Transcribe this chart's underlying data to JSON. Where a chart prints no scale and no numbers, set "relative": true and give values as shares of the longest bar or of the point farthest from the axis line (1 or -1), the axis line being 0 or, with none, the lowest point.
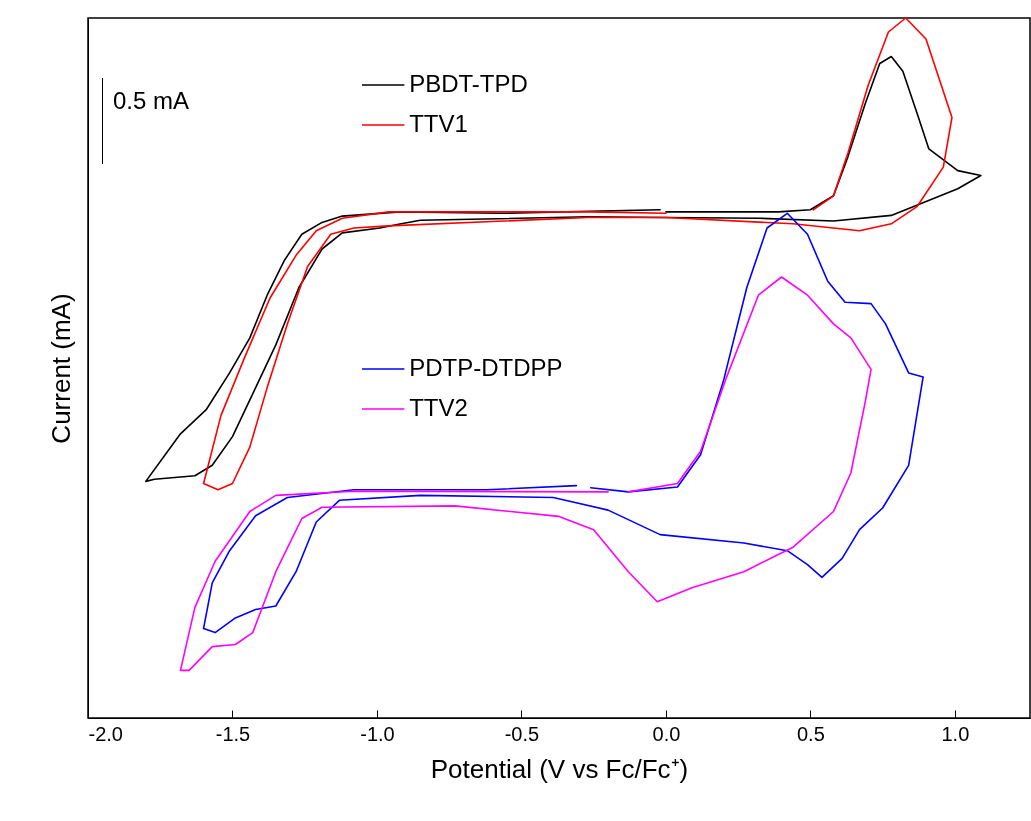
{
  "chart_data": {
    "type": "line",
    "relative": true,
    "xlabel": "Potential (V vs Fc/Fc⁺)",
    "ylabel": "Current (mA)",
    "xlim": [
      -2.0,
      1.26
    ],
    "xticks": [
      {
        "value": -2,
        "label": "-2.0"
      },
      {
        "value": -1.5,
        "label": "-1.5"
      },
      {
        "value": -1,
        "label": "-1.0"
      },
      {
        "value": -0.5,
        "label": "-0.5"
      },
      {
        "value": 0,
        "label": "0.0"
      },
      {
        "value": 0.5,
        "label": "0.5"
      },
      {
        "value": 1,
        "label": "1.0"
      }
    ],
    "tick_labels": "x",
    "grid": false,
    "legend": "top",
    "marker": "none",
    "line_style": "solid",
    "annotations": [
      "0.5 mA"
    ],
    "series": [
      {
        "name": "PBDT-TPD",
        "color": "#000000",
        "x": [
          0.0,
          0.39,
          0.5,
          0.58,
          0.63,
          0.69,
          0.74,
          0.78,
          0.82,
          0.87,
          0.91,
          1.01,
          1.09,
          1.01,
          0.78,
          0.58,
          0.32,
          0.0,
          -0.27,
          -0.85,
          -0.93,
          -0.99,
          -1.12,
          -1.19,
          -1.27,
          -1.35,
          -1.43,
          -1.5,
          -1.57,
          -1.63,
          -1.77,
          -1.8,
          -1.68,
          -1.59,
          -1.51,
          -1.44,
          -1.38,
          -1.32,
          -1.26,
          -1.19,
          -1.12,
          -0.92,
          -0.57,
          -0.02
        ],
        "values": [
          0.723,
          0.723,
          0.726,
          0.746,
          0.802,
          0.878,
          0.935,
          0.945,
          0.924,
          0.863,
          0.813,
          0.782,
          0.775,
          0.756,
          0.718,
          0.71,
          0.714,
          0.715,
          0.716,
          0.711,
          0.705,
          0.7,
          0.693,
          0.67,
          0.615,
          0.533,
          0.463,
          0.402,
          0.361,
          0.346,
          0.341,
          0.338,
          0.406,
          0.441,
          0.493,
          0.543,
          0.604,
          0.654,
          0.691,
          0.708,
          0.717,
          0.723,
          0.721,
          0.726
        ]
      },
      {
        "name": "TTV1",
        "color": "#ff0000",
        "x": [
          0.0,
          -0.27,
          -0.96,
          -1.12,
          -1.21,
          -1.28,
          -1.37,
          -1.46,
          -1.54,
          -1.6,
          -1.55,
          -1.5,
          -1.44,
          -1.38,
          -1.31,
          -1.24,
          -1.16,
          -1.08,
          -0.96,
          -0.27,
          0.0,
          0.44,
          0.67,
          0.78,
          0.87,
          0.96,
          0.99,
          0.9,
          0.83,
          0.77,
          0.7,
          0.63,
          0.58,
          0.51
        ],
        "values": [
          0.721,
          0.723,
          0.723,
          0.714,
          0.696,
          0.661,
          0.6,
          0.513,
          0.432,
          0.335,
          0.326,
          0.335,
          0.387,
          0.472,
          0.563,
          0.645,
          0.691,
          0.7,
          0.703,
          0.715,
          0.715,
          0.706,
          0.696,
          0.706,
          0.731,
          0.787,
          0.858,
          0.97,
          1.0,
          0.98,
          0.904,
          0.807,
          0.746,
          0.726
        ]
      },
      {
        "name": "PDTP-DTDPP",
        "color": "#0000ff",
        "x": [
          -0.31,
          -0.62,
          -1.08,
          -1.31,
          -1.42,
          -1.51,
          -1.57,
          -1.6,
          -1.56,
          -1.49,
          -1.42,
          -1.35,
          -1.28,
          -1.21,
          -1.13,
          -0.85,
          -0.39,
          -0.2,
          -0.02,
          0.27,
          0.42,
          0.49,
          0.54,
          0.61,
          0.67,
          0.75,
          0.84,
          0.89,
          0.84,
          0.76,
          0.71,
          0.62,
          0.56,
          0.49,
          0.42,
          0.35,
          0.28,
          0.2,
          0.12,
          0.04,
          -0.13,
          -0.26
        ],
        "values": [
          0.332,
          0.326,
          0.326,
          0.315,
          0.289,
          0.239,
          0.193,
          0.128,
          0.122,
          0.143,
          0.155,
          0.16,
          0.209,
          0.28,
          0.311,
          0.318,
          0.315,
          0.297,
          0.262,
          0.25,
          0.239,
          0.219,
          0.201,
          0.228,
          0.269,
          0.3,
          0.361,
          0.487,
          0.493,
          0.563,
          0.592,
          0.594,
          0.624,
          0.691,
          0.721,
          0.7,
          0.615,
          0.483,
          0.376,
          0.33,
          0.323,
          0.329
        ]
      },
      {
        "name": "TTV2",
        "color": "#ff00ff",
        "x": [
          -0.2,
          -1.08,
          -1.35,
          -1.44,
          -1.56,
          -1.63,
          -1.68,
          -1.65,
          -1.57,
          -1.49,
          -1.43,
          -1.35,
          -1.26,
          -1.19,
          -0.73,
          -0.37,
          -0.25,
          -0.13,
          -0.03,
          0.09,
          0.27,
          0.44,
          0.58,
          0.64,
          0.69,
          0.71,
          0.64,
          0.58,
          0.49,
          0.4,
          0.32,
          0.21,
          0.12,
          0.04,
          -0.13
        ],
        "values": [
          0.323,
          0.324,
          0.318,
          0.295,
          0.224,
          0.158,
          0.068,
          0.068,
          0.102,
          0.105,
          0.122,
          0.209,
          0.285,
          0.301,
          0.303,
          0.288,
          0.269,
          0.209,
          0.166,
          0.186,
          0.209,
          0.244,
          0.295,
          0.35,
          0.452,
          0.498,
          0.543,
          0.563,
          0.604,
          0.63,
          0.604,
          0.487,
          0.381,
          0.335,
          0.323
        ]
      }
    ]
  }
}
